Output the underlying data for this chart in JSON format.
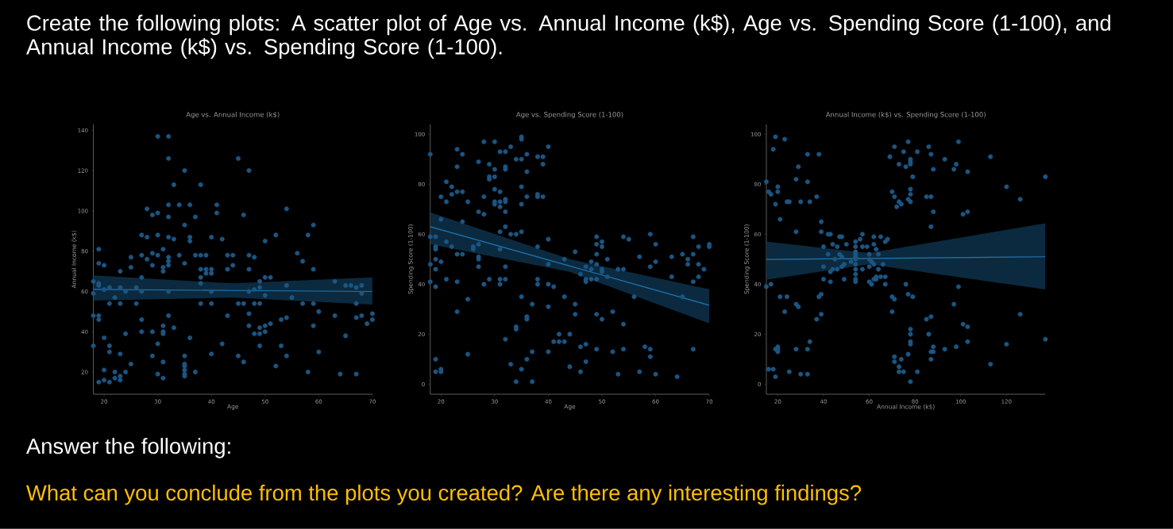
{
  "chart_data": [
    {
      "type": "other",
      "title": "Create the following plots: A scatter plot of Age vs. Annual Income (k$), Age vs. Spending Score (1-100), and Annual Income (k$) vs. Spending Score (1-100).",
      "annotations": [
        "Answer the following:",
        "What can you conclude from the plots you created? Are there any interesting findings?"
      ]
    },
    {
      "type": "scatter",
      "title": "Age vs. Annual Income (k$)",
      "xlabel": "Age",
      "ylabel": "Annual Income (k$)",
      "xlim": [
        18,
        70
      ],
      "ylim": [
        9,
        143
      ],
      "xticks": [
        20,
        30,
        40,
        50,
        60,
        70
      ],
      "yticks": [
        20,
        40,
        60,
        80,
        100,
        120,
        140
      ],
      "marker": "circle",
      "series": [
        {
          "type": "scatter",
          "color": "#1c5582",
          "x": [
            30,
            32,
            32,
            45,
            35,
            47,
            33,
            38,
            28,
            32,
            34,
            36,
            41,
            54,
            29,
            30,
            32,
            37,
            41,
            46,
            35,
            59,
            27,
            28,
            30,
            32,
            33,
            36,
            36,
            40,
            42,
            50,
            52,
            58,
            19,
            25,
            27,
            28,
            29,
            30,
            31,
            32,
            32,
            34,
            35,
            37,
            38,
            39,
            43,
            44,
            47,
            48,
            56,
            57,
            19,
            20,
            25,
            29,
            31,
            31,
            23,
            32,
            38,
            39,
            40,
            39,
            40,
            43,
            44,
            47,
            59,
            27,
            38,
            50,
            51,
            18,
            19,
            19,
            20,
            21,
            22,
            23,
            24,
            26,
            27,
            32,
            38,
            40,
            47,
            48,
            49,
            49,
            50,
            54,
            55,
            63,
            65,
            66,
            67,
            68,
            68,
            18,
            21,
            23,
            26,
            38,
            40,
            45,
            46,
            48,
            49,
            57,
            59,
            67,
            60,
            18,
            19,
            19,
            27,
            32,
            43,
            47,
            54,
            63,
            67,
            68,
            70,
            70,
            69,
            31,
            33,
            47,
            49,
            50,
            51,
            53,
            59,
            27,
            29,
            31,
            31,
            24,
            48,
            49,
            50,
            65,
            20,
            36,
            18,
            21,
            30,
            42,
            49,
            53,
            21,
            23,
            29,
            35,
            40,
            45,
            54,
            60,
            25,
            31,
            35,
            35,
            46,
            52,
            20,
            35,
            22,
            24,
            30,
            35,
            35,
            37,
            58,
            64,
            67,
            22,
            23,
            31,
            23,
            20,
            19,
            21
          ],
          "values": [
            137,
            137,
            126,
            126,
            120,
            120,
            113,
            113,
            101,
            103,
            103,
            103,
            103,
            101,
            98,
            99,
            97,
            97,
            99,
            98,
            93,
            93,
            88,
            87,
            88,
            87,
            86,
            87,
            85,
            87,
            86,
            85,
            88,
            88,
            81,
            77,
            78,
            76,
            79,
            78,
            81,
            75,
            77,
            78,
            74,
            78,
            78,
            78,
            78,
            78,
            78,
            77,
            79,
            75,
            74,
            73,
            72,
            73,
            72,
            70,
            70,
            73,
            71,
            71,
            71,
            69,
            69,
            71,
            73,
            71,
            71,
            67,
            67,
            67,
            67,
            65,
            64,
            63,
            61,
            62,
            57,
            62,
            60,
            62,
            60,
            60,
            64,
            60,
            60,
            61,
            65,
            62,
            58,
            63,
            57,
            65,
            63,
            63,
            62,
            63,
            59,
            59,
            54,
            54,
            54,
            54,
            54,
            54,
            54,
            54,
            54,
            54,
            54,
            54,
            50,
            48,
            48,
            46,
            46,
            48,
            48,
            49,
            47,
            48,
            47,
            48,
            49,
            46,
            44,
            43,
            42,
            43,
            42,
            43,
            44,
            46,
            43,
            40,
            40,
            40,
            39,
            39,
            39,
            39,
            40,
            38,
            37,
            37,
            33,
            33,
            34,
            34,
            33,
            33,
            30,
            29,
            28,
            28,
            29,
            28,
            28,
            30,
            24,
            25,
            24,
            23,
            25,
            23,
            21,
            21,
            20,
            20,
            19,
            19,
            18,
            20,
            20,
            19,
            19,
            17,
            18,
            17,
            16,
            16,
            15,
            15
          ]
        },
        {
          "type": "line",
          "marker": "none",
          "color": "#1f77b4",
          "x": [
            18,
            44,
            70
          ],
          "values": [
            61,
            60.5,
            60
          ],
          "lower": [
            55.5,
            57,
            53.5
          ],
          "upper": [
            68,
            64,
            67
          ]
        }
      ]
    },
    {
      "type": "scatter",
      "title": "Age vs. Spending Score (1-100)",
      "xlabel": "Age",
      "ylabel": "Spending Score (1-100)",
      "xlim": [
        18,
        70
      ],
      "ylim": [
        -4,
        104
      ],
      "xticks": [
        20,
        30,
        40,
        50,
        60,
        70
      ],
      "yticks": [
        0,
        20,
        40,
        60,
        80,
        100
      ],
      "marker": "circle",
      "series": [
        {
          "type": "scatter",
          "color": "#1c5582",
          "x": [
            18,
            23,
            24,
            28,
            30,
            31,
            32,
            33,
            34,
            35,
            35,
            35,
            36,
            38,
            39,
            40,
            39,
            27,
            29,
            23,
            30,
            32,
            32,
            36,
            29,
            30,
            29,
            21,
            22,
            35,
            20,
            22,
            23,
            24,
            28,
            30,
            31,
            36,
            38,
            38,
            39,
            21,
            25,
            30,
            30,
            31,
            31,
            32,
            32,
            35,
            27,
            28,
            32,
            20,
            24,
            32,
            31,
            33,
            34,
            35,
            18,
            19,
            40,
            49,
            50,
            54,
            55,
            59,
            60,
            67,
            70,
            70,
            21,
            22,
            19,
            19,
            26,
            26,
            27,
            31,
            38,
            45,
            49,
            50,
            23,
            24,
            27,
            27,
            19,
            20,
            18,
            19,
            27,
            32,
            40,
            43,
            46,
            47,
            48,
            49,
            49,
            50,
            50,
            51,
            51,
            53,
            54,
            57,
            59,
            60,
            63,
            63,
            65,
            66,
            66,
            67,
            68,
            68,
            68,
            69,
            67,
            18,
            19,
            21,
            23,
            29,
            28,
            31,
            31,
            32,
            38,
            38,
            40,
            41,
            47,
            47,
            48,
            49,
            48,
            25,
            35,
            43,
            45,
            37,
            40,
            56,
            65,
            23,
            45,
            49,
            52,
            50,
            36,
            36,
            34,
            34,
            54,
            32,
            42,
            44,
            41,
            42,
            43,
            46,
            47,
            58,
            59,
            49,
            54,
            67,
            37,
            40,
            52,
            59,
            19,
            36,
            47,
            33,
            44,
            25,
            20,
            20,
            19,
            35,
            46,
            57,
            53,
            60,
            64,
            34,
            37
          ],
          "values": [
            92,
            94,
            92,
            97,
            97,
            93,
            93,
            95,
            90,
            90,
            99,
            98,
            92,
            91,
            91,
            95,
            88,
            89,
            88,
            87,
            86,
            86,
            87,
            85,
            83,
            83,
            82,
            81,
            79,
            79,
            75,
            76,
            77,
            77,
            75,
            78,
            77,
            75,
            75,
            76,
            75,
            73,
            73,
            72,
            73,
            73,
            71,
            73,
            74,
            72,
            69,
            68,
            69,
            66,
            65,
            63,
            61,
            60,
            60,
            61,
            59,
            59,
            58,
            59,
            57,
            59,
            58,
            60,
            56,
            59,
            56,
            55,
            57,
            55,
            55,
            54,
            55,
            54,
            56,
            54,
            55,
            53,
            56,
            55,
            52,
            52,
            51,
            50,
            50,
            49,
            48,
            46,
            47,
            47,
            48,
            50,
            44,
            47,
            49,
            52,
            48,
            46,
            45,
            50,
            43,
            46,
            46,
            51,
            47,
            49,
            51,
            43,
            52,
            50,
            48,
            52,
            55,
            48,
            43,
            46,
            41,
            41,
            39,
            42,
            41,
            42,
            40,
            42,
            40,
            42,
            42,
            40,
            40,
            39,
            42,
            41,
            42,
            42,
            46,
            34,
            35,
            35,
            32,
            32,
            31,
            35,
            35,
            29,
            28,
            28,
            29,
            26,
            27,
            26,
            23,
            22,
            24,
            18,
            20,
            20,
            17,
            17,
            17,
            15,
            16,
            15,
            14,
            14,
            14,
            14,
            13,
            13,
            13,
            11,
            10,
            10,
            9,
            8,
            7,
            12,
            6,
            5,
            5,
            6,
            5,
            5,
            4,
            4,
            3,
            1,
            1
          ]
        },
        {
          "type": "line",
          "marker": "none",
          "color": "#1f77b4",
          "x": [
            18,
            44,
            70
          ],
          "values": [
            63,
            47.3,
            31.6
          ],
          "lower": [
            56,
            45,
            24.3
          ],
          "upper": [
            68.8,
            50,
            38
          ]
        }
      ]
    },
    {
      "type": "scatter",
      "title": "Annual Income (k$) vs. Spending Score (1-100)",
      "xlabel": "Annual Income (k$)",
      "ylabel": "Spending Score (1-100)",
      "xlim": [
        15,
        137
      ],
      "ylim": [
        -4,
        104
      ],
      "xticks": [
        20,
        40,
        60,
        80,
        100,
        120
      ],
      "yticks": [
        0,
        20,
        40,
        60,
        80,
        100
      ],
      "marker": "circle",
      "series": [
        {
          "type": "scatter",
          "color": "#1c5582",
          "x": [
            19,
            23,
            18,
            33,
            38,
            29,
            15,
            28,
            33,
            20,
            16,
            17,
            20,
            19,
            24,
            25,
            30,
            34,
            37,
            21,
            39,
            28,
            39,
            42,
            43,
            47,
            48,
            57,
            62,
            65,
            68,
            67,
            54,
            56,
            40,
            44,
            46,
            50,
            54,
            57,
            59,
            62,
            63,
            42,
            45,
            47,
            48,
            52,
            54,
            54,
            54,
            54,
            60,
            60,
            61,
            64,
            66,
            40,
            43,
            44,
            46,
            48,
            49,
            54,
            54,
            54,
            57,
            60,
            62,
            64,
            63,
            65,
            67,
            40,
            43,
            49,
            54,
            54,
            60,
            61,
            62,
            63,
            67,
            15,
            17,
            76,
            99,
            21,
            24,
            38,
            39,
            70,
            71,
            77,
            79,
            28,
            29,
            97,
            23,
            39,
            70,
            37,
            85,
            87,
            126,
            101,
            103,
            78,
            78,
            86,
            78,
            78,
            34,
            103,
            28,
            33,
            20,
            19,
            20,
            20,
            88,
            93,
            98,
            87,
            88,
            77,
            71,
            71,
            74,
            87,
            120,
            113,
            137,
            16,
            18,
            19,
            25,
            30,
            33,
            73,
            73,
            75,
            81,
            78,
            71,
            77,
            86,
            99,
            69,
            75,
            81,
            87,
            93,
            113,
            73,
            76,
            78,
            78,
            78,
            88,
            97,
            98,
            103,
            79,
            137,
            120,
            70,
            71,
            78,
            78,
            73,
            74,
            77,
            78,
            85,
            87,
            126,
            88,
            101,
            103,
            72,
            87
          ],
          "values": [
            99,
            98,
            94,
            92,
            92,
            87,
            81,
            82,
            81,
            79,
            77,
            76,
            77,
            72,
            73,
            73,
            73,
            73,
            75,
            66,
            65,
            61,
            61,
            60,
            60,
            59,
            59,
            60,
            59,
            59,
            58,
            57,
            57,
            58,
            55,
            56,
            55,
            56,
            55,
            55,
            55,
            56,
            54,
            52,
            50,
            52,
            51,
            49,
            53,
            52,
            51,
            50,
            52,
            50,
            49,
            52,
            48,
            47,
            45,
            46,
            46,
            47,
            48,
            48,
            46,
            44,
            46,
            47,
            48,
            46,
            43,
            43,
            43,
            42,
            41,
            42,
            42,
            41,
            41,
            40,
            42,
            42,
            40,
            39,
            40,
            40,
            39,
            35,
            35,
            35,
            36,
            35,
            34,
            36,
            35,
            32,
            31,
            32,
            29,
            28,
            29,
            26,
            26,
            27,
            28,
            24,
            23,
            22,
            20,
            20,
            17,
            16,
            17,
            17,
            14,
            14,
            14,
            14,
            13,
            15,
            15,
            14,
            15,
            13,
            13,
            12,
            11,
            9,
            10,
            10,
            16,
            8,
            18,
            6,
            6,
            3,
            5,
            4,
            4,
            7,
            5,
            5,
            5,
            1,
            95,
            97,
            95,
            97,
            91,
            93,
            93,
            92,
            90,
            91,
            88,
            87,
            90,
            89,
            88,
            86,
            86,
            88,
            85,
            83,
            83,
            79,
            77,
            75,
            78,
            76,
            73,
            72,
            74,
            73,
            75,
            75,
            74,
            69,
            68,
            69,
            71,
            63
          ]
        },
        {
          "type": "line",
          "marker": "none",
          "color": "#1f77b4",
          "x": [
            15,
            60,
            137
          ],
          "values": [
            49.9,
            50.3,
            51
          ],
          "lower": [
            41.8,
            48,
            37.9
          ],
          "upper": [
            57,
            52.5,
            64.4
          ]
        }
      ]
    }
  ]
}
